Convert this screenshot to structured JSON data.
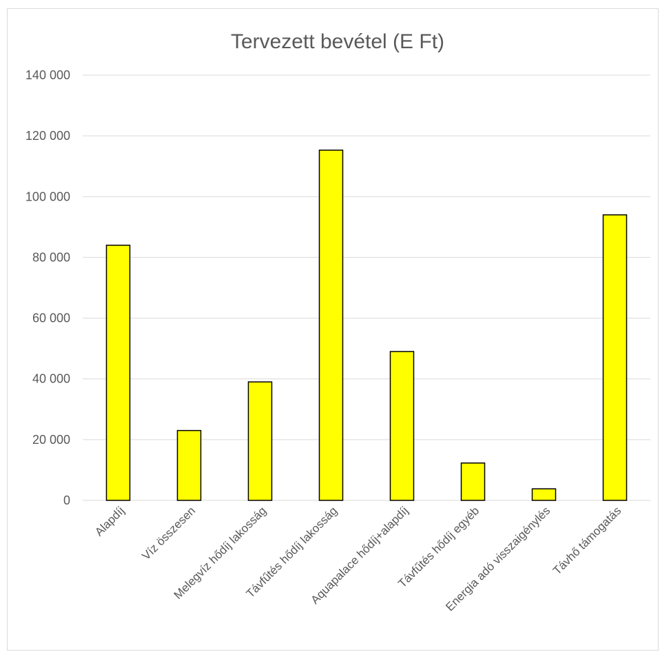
{
  "chart_data": {
    "type": "bar",
    "title": "Tervezett bevétel (E Ft)",
    "xlabel": "",
    "ylabel": "",
    "categories": [
      "Alapdíj",
      "Víz összesen",
      "Melegvíz hődíj lakosság",
      "Távfűtés hődíj lakosság",
      "Aquapalace hődíj+alapdíj",
      "Távfűtés hődíj egyéb",
      "Energia adó visszaigénylés",
      "Távhő támogatás"
    ],
    "values": [
      84000,
      23000,
      39000,
      115300,
      49000,
      12300,
      3800,
      94000
    ],
    "ylim": [
      0,
      140000
    ],
    "yticks": [
      0,
      20000,
      40000,
      60000,
      80000,
      100000,
      120000,
      140000
    ],
    "ytick_labels": [
      "0",
      "20 000",
      "40 000",
      "60 000",
      "80 000",
      "100 000",
      "120 000",
      "140 000"
    ],
    "grid": true,
    "legend": "none",
    "bar_color": "#ffff00",
    "bar_edge_color": "#000000",
    "gridline_color": "#d9d9d9",
    "text_color": "#595959"
  }
}
